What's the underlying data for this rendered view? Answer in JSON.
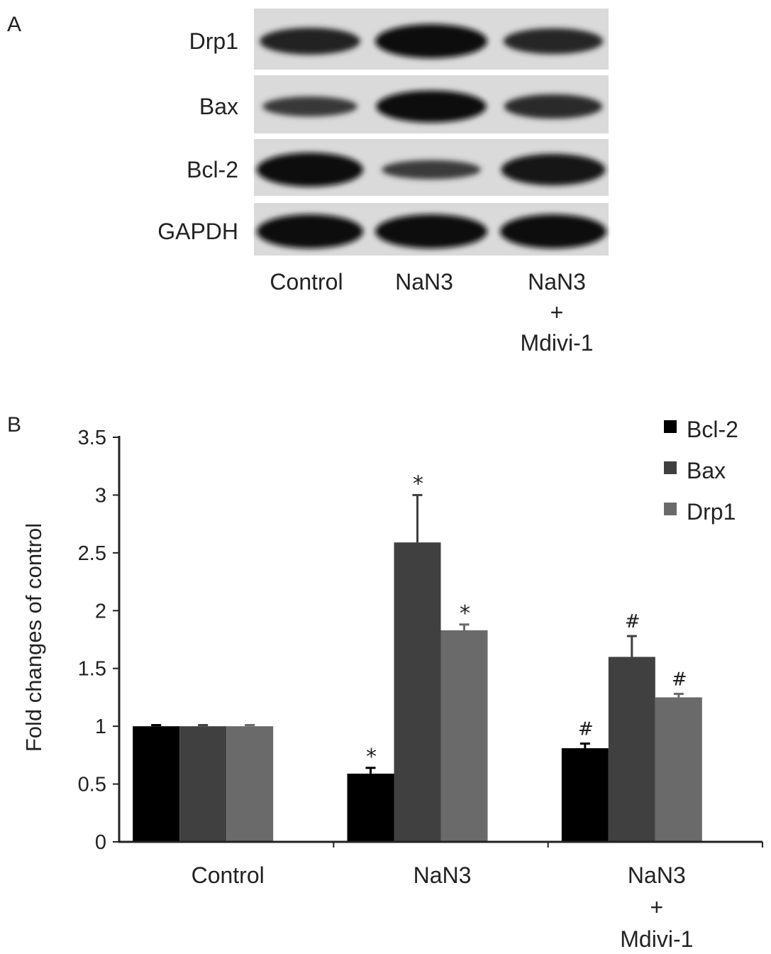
{
  "panel_a": {
    "letter": "A",
    "proteins": [
      {
        "name": "Drp1",
        "intensity": [
          0.72,
          1.0,
          0.68
        ]
      },
      {
        "name": "Bax",
        "intensity": [
          0.45,
          0.92,
          0.62
        ]
      },
      {
        "name": "Bcl-2",
        "intensity": [
          1.0,
          0.42,
          0.9
        ]
      },
      {
        "name": "GAPDH",
        "intensity": [
          1.0,
          1.0,
          1.0
        ]
      }
    ],
    "lanes": [
      [
        "Control"
      ],
      [
        "NaN3"
      ],
      [
        "NaN3",
        "+",
        "Mdivi-1"
      ]
    ]
  },
  "panel_b": {
    "letter": "B"
  },
  "chart_data": {
    "type": "bar",
    "title": "",
    "xlabel": "",
    "ylabel": "Fold changes of control",
    "ylim": [
      0,
      3.5
    ],
    "yticks": [
      "0",
      "0.5",
      "1",
      "1.5",
      "2",
      "2.5",
      "3",
      "3.5"
    ],
    "categories": [
      [
        "Control"
      ],
      [
        "NaN3"
      ],
      [
        "NaN3",
        "+",
        "Mdivi-1"
      ]
    ],
    "series": [
      {
        "name": "Bcl-2",
        "color": "#000000",
        "values": [
          1.0,
          0.59,
          0.81
        ],
        "errors": [
          0.01,
          0.05,
          0.04
        ],
        "marks": [
          "",
          "*",
          "#"
        ]
      },
      {
        "name": "Bax",
        "color": "#404040",
        "values": [
          1.0,
          2.59,
          1.6
        ],
        "errors": [
          0.01,
          0.41,
          0.18
        ],
        "marks": [
          "",
          "*",
          "#"
        ]
      },
      {
        "name": "Drp1",
        "color": "#6a6a6a",
        "values": [
          1.0,
          1.83,
          1.25
        ],
        "errors": [
          0.01,
          0.05,
          0.03
        ],
        "marks": [
          "",
          "*",
          "#"
        ]
      }
    ],
    "legend": "top-right",
    "grid": false
  }
}
